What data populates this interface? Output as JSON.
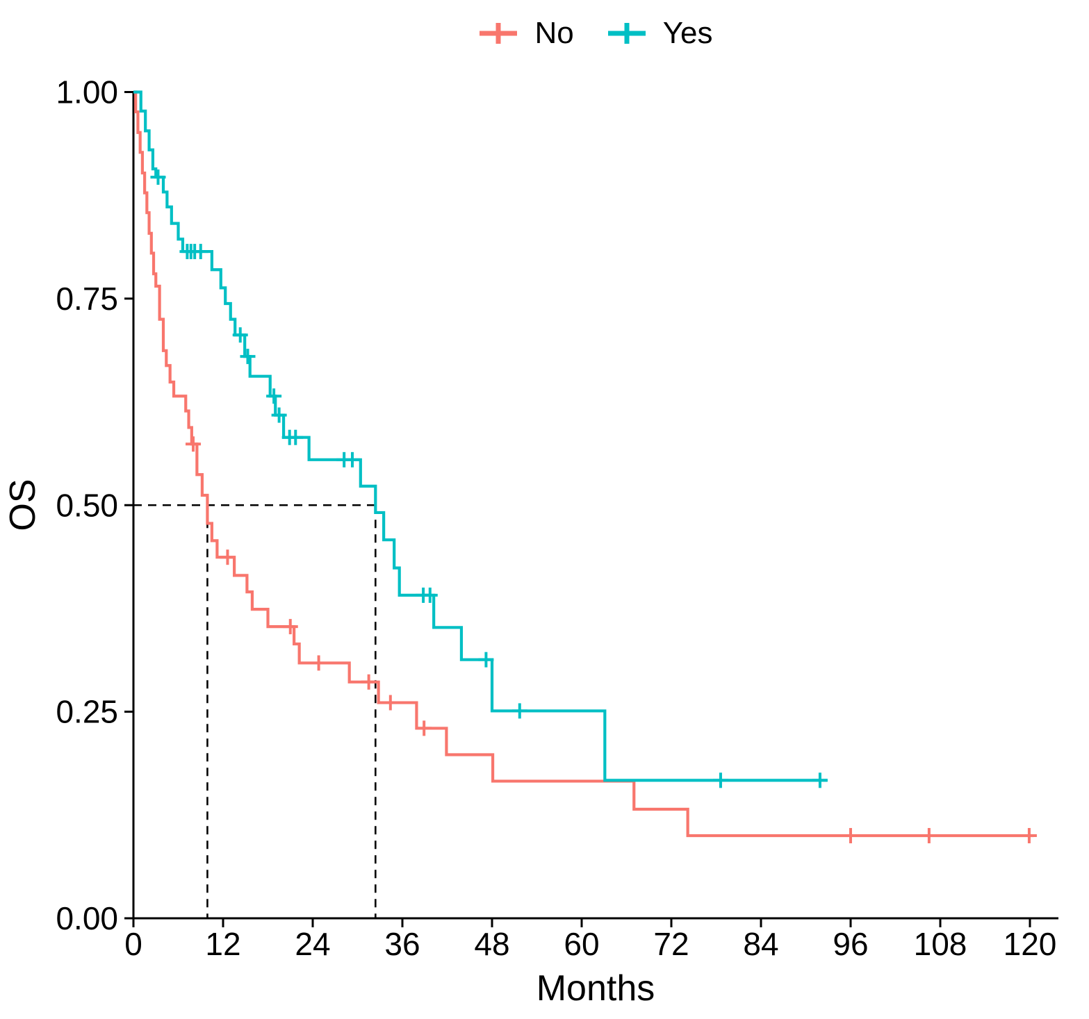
{
  "chart_data": {
    "type": "line",
    "subtype": "kaplan_meier_step",
    "title": "",
    "xlabel": "Months",
    "ylabel": "OS",
    "xlim": [
      0,
      120
    ],
    "ylim": [
      0.0,
      1.0
    ],
    "grid": false,
    "xticks": {
      "values": [
        0,
        12,
        24,
        36,
        48,
        60,
        72,
        84,
        96,
        108,
        120
      ],
      "labels": [
        "0",
        "12",
        "24",
        "36",
        "48",
        "60",
        "72",
        "84",
        "96",
        "108",
        "120"
      ]
    },
    "yticks": {
      "values": [
        0.0,
        0.25,
        0.5,
        0.75,
        1.0
      ],
      "labels": [
        "0.00",
        "0.25",
        "0.50",
        "0.75",
        "1.00"
      ]
    },
    "legend": {
      "position": "top"
    },
    "reference_lines": {
      "survival_level": 0.5,
      "medians": [
        {
          "series": "No",
          "time_months": 9.9
        },
        {
          "series": "Yes",
          "time_months": 32.4
        }
      ],
      "color": "#000000"
    },
    "series": [
      {
        "name": "No",
        "color": "#F8766D",
        "end_time": 120.5,
        "steps": [
          [
            0,
            1.0
          ],
          [
            0.3,
            0.976
          ],
          [
            0.6,
            0.951
          ],
          [
            0.9,
            0.927
          ],
          [
            1.2,
            0.902
          ],
          [
            1.5,
            0.878
          ],
          [
            1.8,
            0.854
          ],
          [
            2.1,
            0.829
          ],
          [
            2.4,
            0.805
          ],
          [
            2.7,
            0.78
          ],
          [
            3.0,
            0.765
          ],
          [
            3.5,
            0.725
          ],
          [
            4.0,
            0.687
          ],
          [
            4.4,
            0.669
          ],
          [
            4.9,
            0.649
          ],
          [
            5.4,
            0.632
          ],
          [
            7.0,
            0.614
          ],
          [
            7.4,
            0.594
          ],
          [
            7.8,
            0.574
          ],
          [
            8.5,
            0.537
          ],
          [
            9.2,
            0.512
          ],
          [
            9.9,
            0.478
          ],
          [
            10.5,
            0.457
          ],
          [
            11.2,
            0.437
          ],
          [
            13.5,
            0.415
          ],
          [
            15.2,
            0.395
          ],
          [
            15.9,
            0.374
          ],
          [
            18.0,
            0.353
          ],
          [
            21.5,
            0.332
          ],
          [
            22.2,
            0.309
          ],
          [
            28.9,
            0.286
          ],
          [
            32.8,
            0.261
          ],
          [
            37.9,
            0.23
          ],
          [
            41.9,
            0.198
          ],
          [
            48.1,
            0.166
          ],
          [
            67.0,
            0.132
          ],
          [
            74.2,
            0.1
          ]
        ],
        "censors": [
          [
            8.0,
            0.574
          ],
          [
            12.6,
            0.437
          ],
          [
            21.0,
            0.353
          ],
          [
            24.8,
            0.309
          ],
          [
            31.5,
            0.286
          ],
          [
            34.4,
            0.261
          ],
          [
            38.9,
            0.23
          ],
          [
            96.0,
            0.1
          ],
          [
            106.5,
            0.1
          ],
          [
            119.9,
            0.1
          ]
        ]
      },
      {
        "name": "Yes",
        "color": "#00BFC4",
        "end_time": 92.9,
        "steps": [
          [
            0,
            1.0
          ],
          [
            1.0,
            0.977
          ],
          [
            1.6,
            0.953
          ],
          [
            2.1,
            0.93
          ],
          [
            2.6,
            0.907
          ],
          [
            3.0,
            0.897
          ],
          [
            4.0,
            0.879
          ],
          [
            4.5,
            0.861
          ],
          [
            5.1,
            0.841
          ],
          [
            6.0,
            0.822
          ],
          [
            6.6,
            0.807
          ],
          [
            10.5,
            0.785
          ],
          [
            11.7,
            0.763
          ],
          [
            12.3,
            0.744
          ],
          [
            13.0,
            0.725
          ],
          [
            13.6,
            0.706
          ],
          [
            14.9,
            0.68
          ],
          [
            15.6,
            0.656
          ],
          [
            18.3,
            0.632
          ],
          [
            19.0,
            0.609
          ],
          [
            20.1,
            0.582
          ],
          [
            23.5,
            0.555
          ],
          [
            30.4,
            0.523
          ],
          [
            32.4,
            0.491
          ],
          [
            33.5,
            0.458
          ],
          [
            34.9,
            0.424
          ],
          [
            35.6,
            0.391
          ],
          [
            40.2,
            0.352
          ],
          [
            43.9,
            0.313
          ],
          [
            48.0,
            0.251
          ],
          [
            63.1,
            0.167
          ]
        ],
        "censors": [
          [
            3.3,
            0.897
          ],
          [
            7.2,
            0.807
          ],
          [
            7.7,
            0.807
          ],
          [
            8.2,
            0.807
          ],
          [
            9.0,
            0.807
          ],
          [
            14.3,
            0.706
          ],
          [
            15.3,
            0.68
          ],
          [
            18.8,
            0.632
          ],
          [
            19.5,
            0.609
          ],
          [
            20.9,
            0.582
          ],
          [
            21.7,
            0.582
          ],
          [
            28.2,
            0.555
          ],
          [
            29.3,
            0.555
          ],
          [
            38.8,
            0.391
          ],
          [
            39.7,
            0.391
          ],
          [
            47.2,
            0.313
          ],
          [
            51.7,
            0.251
          ],
          [
            78.6,
            0.167
          ],
          [
            91.9,
            0.167
          ]
        ]
      }
    ]
  }
}
